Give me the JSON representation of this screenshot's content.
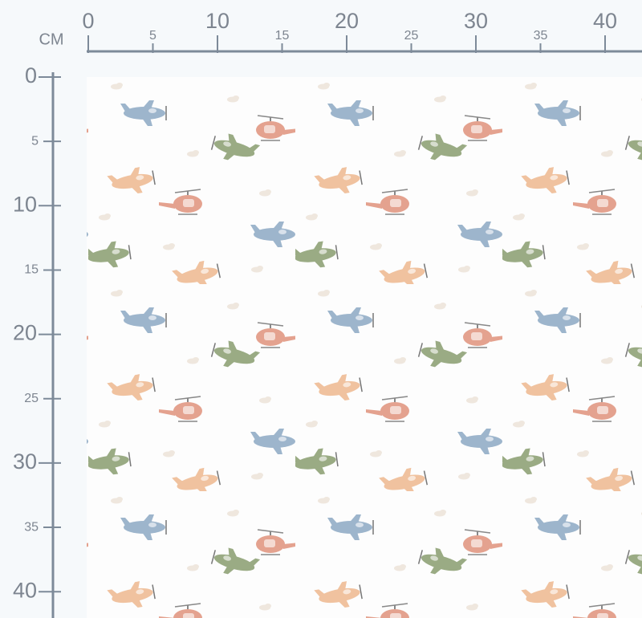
{
  "ruler": {
    "unit": "CM",
    "x_ticks": [
      0,
      5,
      10,
      15,
      20,
      25,
      30,
      35,
      40
    ],
    "y_ticks": [
      0,
      5,
      10,
      15,
      20,
      25,
      30,
      35,
      40
    ]
  }
}
